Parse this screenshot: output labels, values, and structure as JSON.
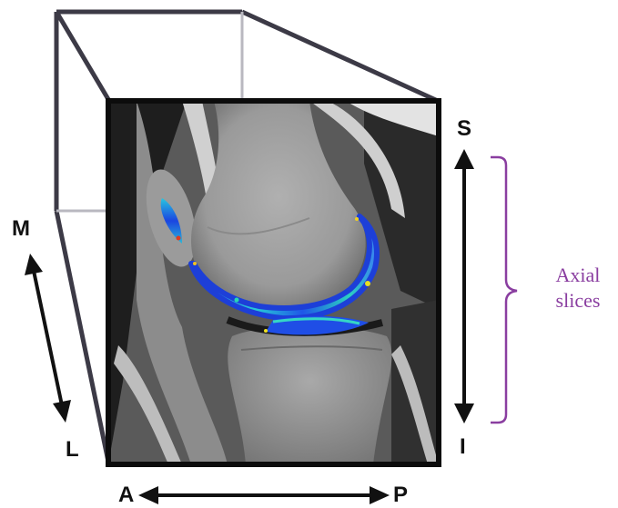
{
  "orientation_labels": {
    "superior": "S",
    "inferior": "I",
    "medial": "M",
    "lateral": "L",
    "anterior": "A",
    "posterior": "P"
  },
  "slices_label": {
    "line1": "Axial",
    "line2": "slices"
  },
  "colors": {
    "bracket": "#8a3ea0",
    "frame": "#3c3a46",
    "arrows": "#111111",
    "cartilage_map_low": "#1f4fe0",
    "cartilage_map_mid": "#29d3c4",
    "cartilage_map_high": "#f0e020"
  }
}
